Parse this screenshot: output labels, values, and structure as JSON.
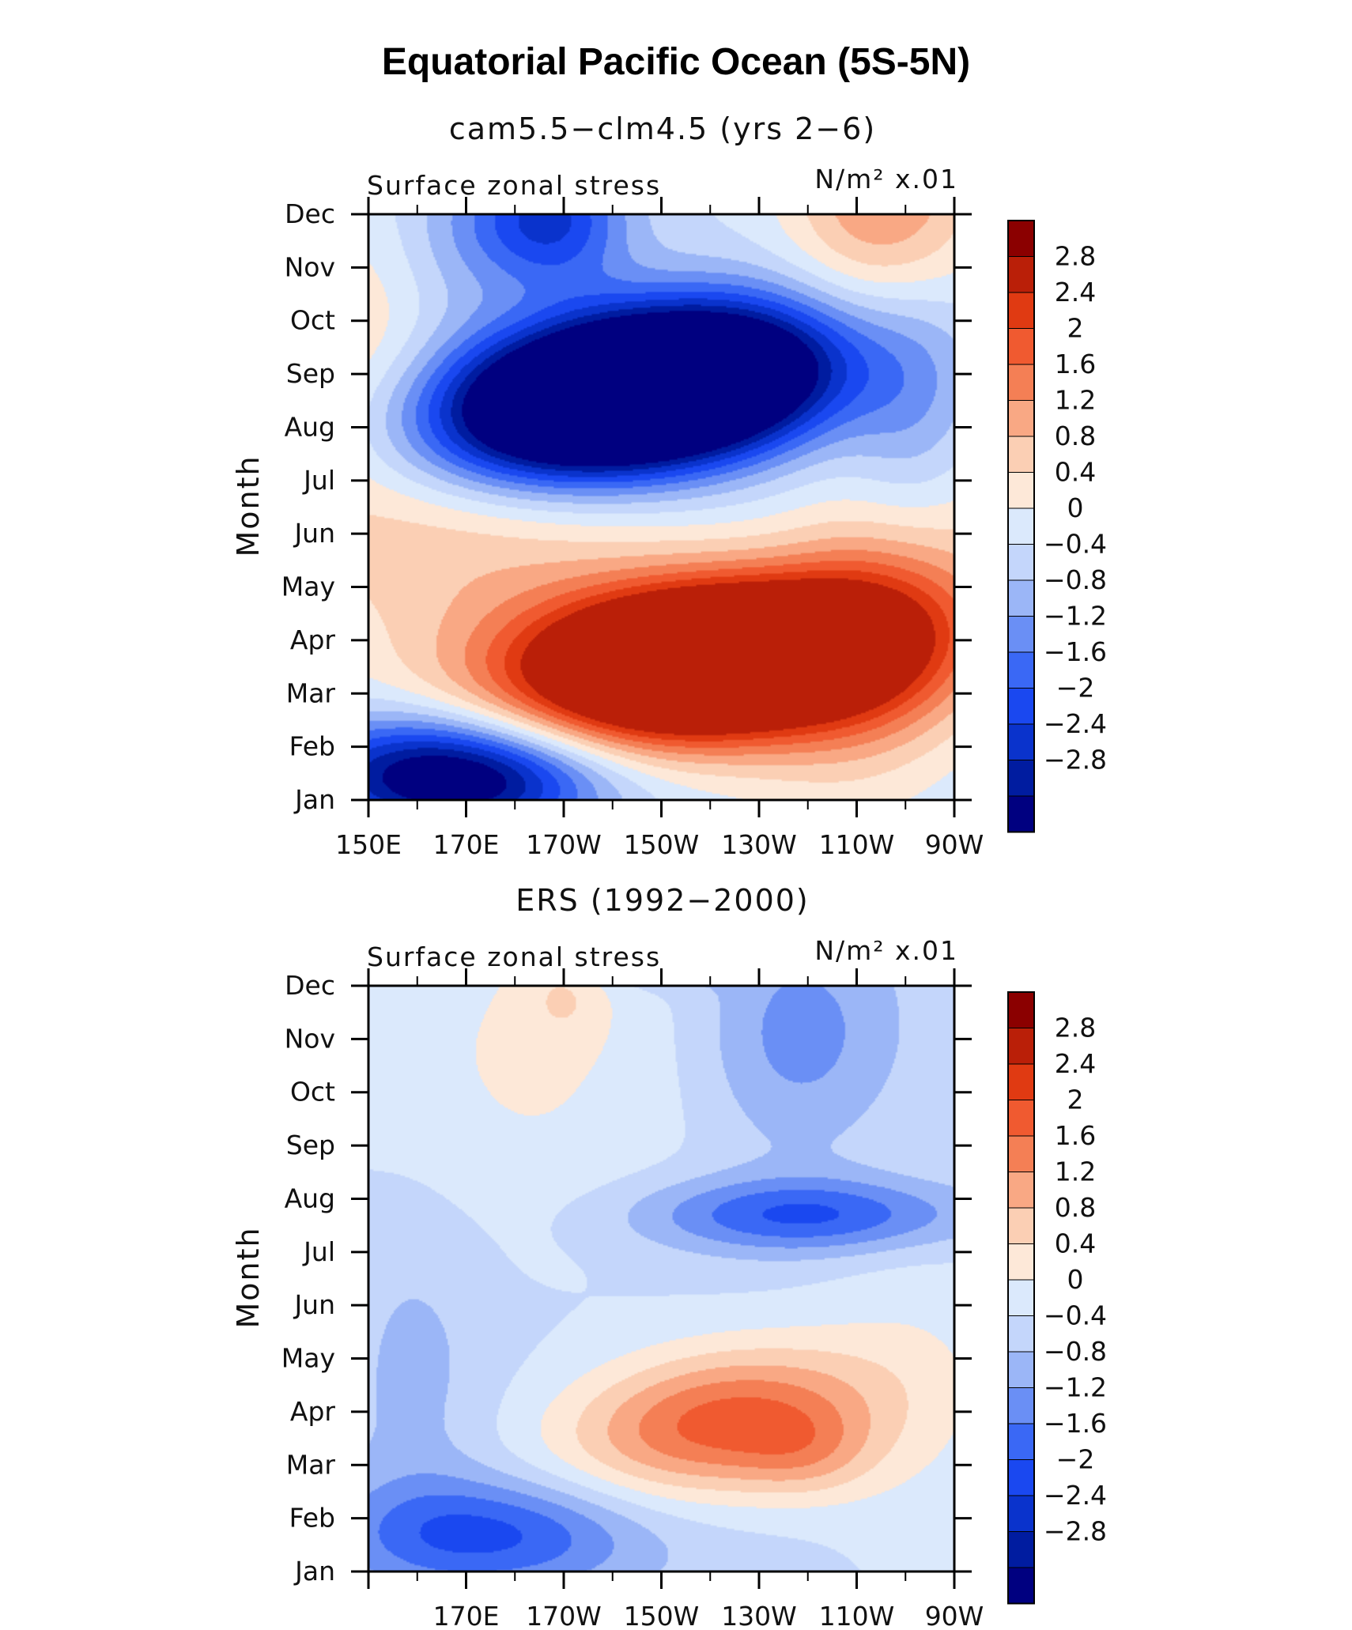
{
  "figure": {
    "title": "Equatorial Pacific Ocean (5S-5N)"
  },
  "palette": [
    "#000080",
    "#001ca0",
    "#0a33cc",
    "#1a48f0",
    "#3a68f5",
    "#6a8ff5",
    "#9bb6f7",
    "#c4d6fb",
    "#dbe9fc",
    "#fde8d8",
    "#fbcfb4",
    "#f9a884",
    "#f47f55",
    "#f05a30",
    "#e03a12",
    "#ba1f08",
    "#8b0000"
  ],
  "colorbar_labels": [
    "2.8",
    "2.4",
    "2",
    "1.6",
    "1.2",
    "0.8",
    "0.4",
    "0",
    "−0.4",
    "−0.8",
    "−1.2",
    "−1.6",
    "−2",
    "−2.4",
    "−2.8"
  ],
  "month_labels": [
    "Jan",
    "Feb",
    "Mar",
    "Apr",
    "May",
    "Jun",
    "Jul",
    "Aug",
    "Sep",
    "Oct",
    "Nov",
    "Dec"
  ],
  "chart_data": [
    {
      "type": "heatmap",
      "title": "cam5.5−clm4.5 (yrs 2−6)",
      "variable": "Surface zonal stress",
      "units": "N/m² x.01",
      "ylabel": "Month",
      "xlabel": "",
      "x_ticks": [
        "150E",
        "170E",
        "170W",
        "150W",
        "130W",
        "110W",
        "90W"
      ],
      "xlim_degE": [
        150,
        270
      ],
      "levels": [
        -2.8,
        -2.4,
        -2.0,
        -1.6,
        -1.2,
        -0.8,
        -0.4,
        0,
        0.4,
        0.8,
        1.2,
        1.6,
        2.0,
        2.4,
        2.8
      ],
      "features": [
        {
          "x": 200,
          "y": 7.6,
          "sx": 26,
          "sy": 1.1,
          "amp": -7.5,
          "rot": -0.62
        },
        {
          "x": 225,
          "y": 7.9,
          "sx": 16,
          "sy": 0.9,
          "amp": -1.2,
          "rot": -0.3
        },
        {
          "x": 220,
          "y": 2.6,
          "sx": 27,
          "sy": 1.05,
          "amp": 6.5,
          "rot": -0.45
        },
        {
          "x": 162,
          "y": 0.5,
          "sx": 20,
          "sy": 0.8,
          "amp": -2.8,
          "rot": 0
        },
        {
          "x": 178,
          "y": 0.3,
          "sx": 18,
          "sy": 0.7,
          "amp": -1.3,
          "rot": 0
        },
        {
          "x": 158,
          "y": 6.4,
          "sx": 34,
          "sy": 2.8,
          "amp": 1.4,
          "rot": 0.4
        },
        {
          "x": 168,
          "y": 10.3,
          "sx": 10,
          "sy": 1.4,
          "amp": -0.7,
          "rot": 0
        },
        {
          "x": 187,
          "y": 10.9,
          "sx": 11,
          "sy": 0.9,
          "amp": -2.2,
          "rot": 0
        },
        {
          "x": 256,
          "y": 11.3,
          "sx": 14,
          "sy": 1.7,
          "amp": 1.7,
          "rot": 0
        },
        {
          "x": 258,
          "y": 3.5,
          "sx": 16,
          "sy": 2.2,
          "amp": 1.6,
          "rot": -0.2
        },
        {
          "x": 262,
          "y": 7.0,
          "sx": 10,
          "sy": 2.0,
          "amp": -1.0,
          "rot": 0
        }
      ]
    },
    {
      "type": "heatmap",
      "title": "ERS (1992−2000)",
      "variable": "Surface zonal stress",
      "units": "N/m² x.01",
      "ylabel": "Month",
      "xlabel": "",
      "x_ticks": [
        "",
        "170E",
        "170W",
        "150W",
        "130W",
        "110W",
        "90W"
      ],
      "xlim_degE": [
        150,
        270
      ],
      "levels": [
        -2.8,
        -2.4,
        -2.0,
        -1.6,
        -1.2,
        -0.8,
        -0.4,
        0,
        0.4,
        0.8,
        1.2,
        1.6,
        2.0,
        2.4,
        2.8
      ],
      "features": [
        {
          "x": 222,
          "y": 2.8,
          "sx": 22,
          "sy": 1.0,
          "amp": 2.3,
          "rot": -0.45
        },
        {
          "x": 240,
          "y": 2.2,
          "sx": 10,
          "sy": 0.6,
          "amp": 0.7,
          "rot": 0
        },
        {
          "x": 175,
          "y": 0.7,
          "sx": 22,
          "sy": 0.75,
          "amp": -1.6,
          "rot": 0
        },
        {
          "x": 240,
          "y": 6.7,
          "sx": 24,
          "sy": 0.5,
          "amp": -1.6,
          "rot": 0
        },
        {
          "x": 210,
          "y": 11.8,
          "sx": 10,
          "sy": 0.4,
          "amp": -1.8,
          "rot": 0
        },
        {
          "x": 238,
          "y": 10.1,
          "sx": 14,
          "sy": 1.5,
          "amp": -0.9,
          "rot": 0
        },
        {
          "x": 182,
          "y": 9.6,
          "sx": 28,
          "sy": 2.6,
          "amp": 0.6,
          "rot": 0
        },
        {
          "x": 190,
          "y": 10.8,
          "sx": 6,
          "sy": 0.6,
          "amp": 0.5,
          "rot": 0
        },
        {
          "x": 160,
          "y": 3.8,
          "sx": 10,
          "sy": 2.5,
          "amp": -0.4,
          "rot": 0
        },
        {
          "x": 264,
          "y": 3.5,
          "sx": 16,
          "sy": 3.0,
          "amp": 0.4,
          "rot": 0
        }
      ],
      "bias": -0.15
    }
  ]
}
